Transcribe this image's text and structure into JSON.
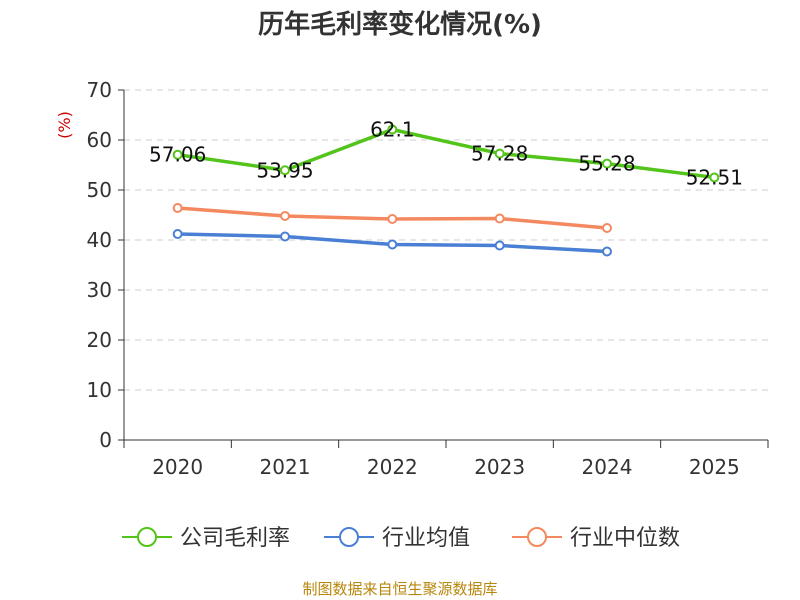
{
  "chart_data": {
    "type": "line",
    "title": "历年毛利率变化情况(%)",
    "ylabel": "(%)",
    "xlabel": "",
    "categories": [
      "2020",
      "2021",
      "2022",
      "2023",
      "2024",
      "2025"
    ],
    "ylim": [
      0,
      70
    ],
    "yticks": [
      0,
      10,
      20,
      30,
      40,
      50,
      60,
      70
    ],
    "grid": true,
    "legend_position": "bottom",
    "series": [
      {
        "name": "公司毛利率",
        "color": "#52c41a",
        "values": [
          57.06,
          53.95,
          62.1,
          57.28,
          55.28,
          52.51
        ],
        "labels": [
          "57.06",
          "53.95",
          "62.1",
          "57.28",
          "55.28",
          "52.51"
        ]
      },
      {
        "name": "行业均值",
        "color": "#4a7fd6",
        "values": [
          41.2,
          40.7,
          39.1,
          38.9,
          37.7,
          null
        ]
      },
      {
        "name": "行业中位数",
        "color": "#f4895f",
        "values": [
          46.4,
          44.8,
          44.2,
          44.3,
          42.4,
          null
        ]
      }
    ]
  },
  "source_note": "制图数据来自恒生聚源数据库"
}
